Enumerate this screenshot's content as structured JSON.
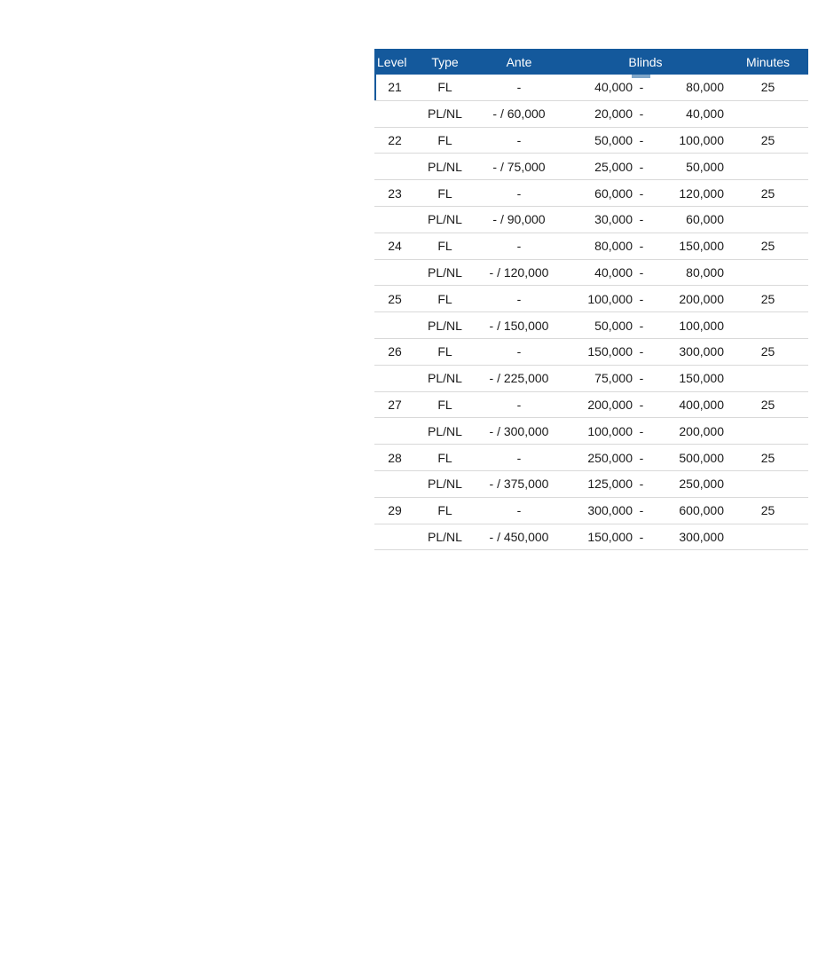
{
  "table": {
    "headers": {
      "level": "Level",
      "type": "Type",
      "ante": "Ante",
      "blinds": "Blinds",
      "minutes": "Minutes"
    },
    "rows": [
      {
        "level": "21",
        "type": "FL",
        "ante": "-",
        "sb": "40,000",
        "sep": "-",
        "bb": "80,000",
        "minutes": "25"
      },
      {
        "level": "",
        "type": "PL/NL",
        "ante": "- / 60,000",
        "sb": "20,000",
        "sep": "-",
        "bb": "40,000",
        "minutes": ""
      },
      {
        "level": "22",
        "type": "FL",
        "ante": "-",
        "sb": "50,000",
        "sep": "-",
        "bb": "100,000",
        "minutes": "25"
      },
      {
        "level": "",
        "type": "PL/NL",
        "ante": "- / 75,000",
        "sb": "25,000",
        "sep": "-",
        "bb": "50,000",
        "minutes": ""
      },
      {
        "level": "23",
        "type": "FL",
        "ante": "-",
        "sb": "60,000",
        "sep": "-",
        "bb": "120,000",
        "minutes": "25"
      },
      {
        "level": "",
        "type": "PL/NL",
        "ante": "- / 90,000",
        "sb": "30,000",
        "sep": "-",
        "bb": "60,000",
        "minutes": ""
      },
      {
        "level": "24",
        "type": "FL",
        "ante": "-",
        "sb": "80,000",
        "sep": "-",
        "bb": "150,000",
        "minutes": "25"
      },
      {
        "level": "",
        "type": "PL/NL",
        "ante": "- / 120,000",
        "sb": "40,000",
        "sep": "-",
        "bb": "80,000",
        "minutes": ""
      },
      {
        "level": "25",
        "type": "FL",
        "ante": "-",
        "sb": "100,000",
        "sep": "-",
        "bb": "200,000",
        "minutes": "25"
      },
      {
        "level": "",
        "type": "PL/NL",
        "ante": "- / 150,000",
        "sb": "50,000",
        "sep": "-",
        "bb": "100,000",
        "minutes": ""
      },
      {
        "level": "26",
        "type": "FL",
        "ante": "-",
        "sb": "150,000",
        "sep": "-",
        "bb": "300,000",
        "minutes": "25"
      },
      {
        "level": "",
        "type": "PL/NL",
        "ante": "- / 225,000",
        "sb": "75,000",
        "sep": "-",
        "bb": "150,000",
        "minutes": ""
      },
      {
        "level": "27",
        "type": "FL",
        "ante": "-",
        "sb": "200,000",
        "sep": "-",
        "bb": "400,000",
        "minutes": "25"
      },
      {
        "level": "",
        "type": "PL/NL",
        "ante": "- / 300,000",
        "sb": "100,000",
        "sep": "-",
        "bb": "200,000",
        "minutes": ""
      },
      {
        "level": "28",
        "type": "FL",
        "ante": "-",
        "sb": "250,000",
        "sep": "-",
        "bb": "500,000",
        "minutes": "25"
      },
      {
        "level": "",
        "type": "PL/NL",
        "ante": "- / 375,000",
        "sb": "125,000",
        "sep": "-",
        "bb": "250,000",
        "minutes": ""
      },
      {
        "level": "29",
        "type": "FL",
        "ante": "-",
        "sb": "300,000",
        "sep": "-",
        "bb": "600,000",
        "minutes": "25"
      },
      {
        "level": "",
        "type": "PL/NL",
        "ante": "- / 450,000",
        "sb": "150,000",
        "sep": "-",
        "bb": "300,000",
        "minutes": ""
      }
    ],
    "colors": {
      "header_bg": "#14599c",
      "header_text": "#ffffff",
      "row_line": "#d9d9d9",
      "body_text": "#1a1a1a",
      "blinds_marker": "#7fa6c9"
    }
  }
}
